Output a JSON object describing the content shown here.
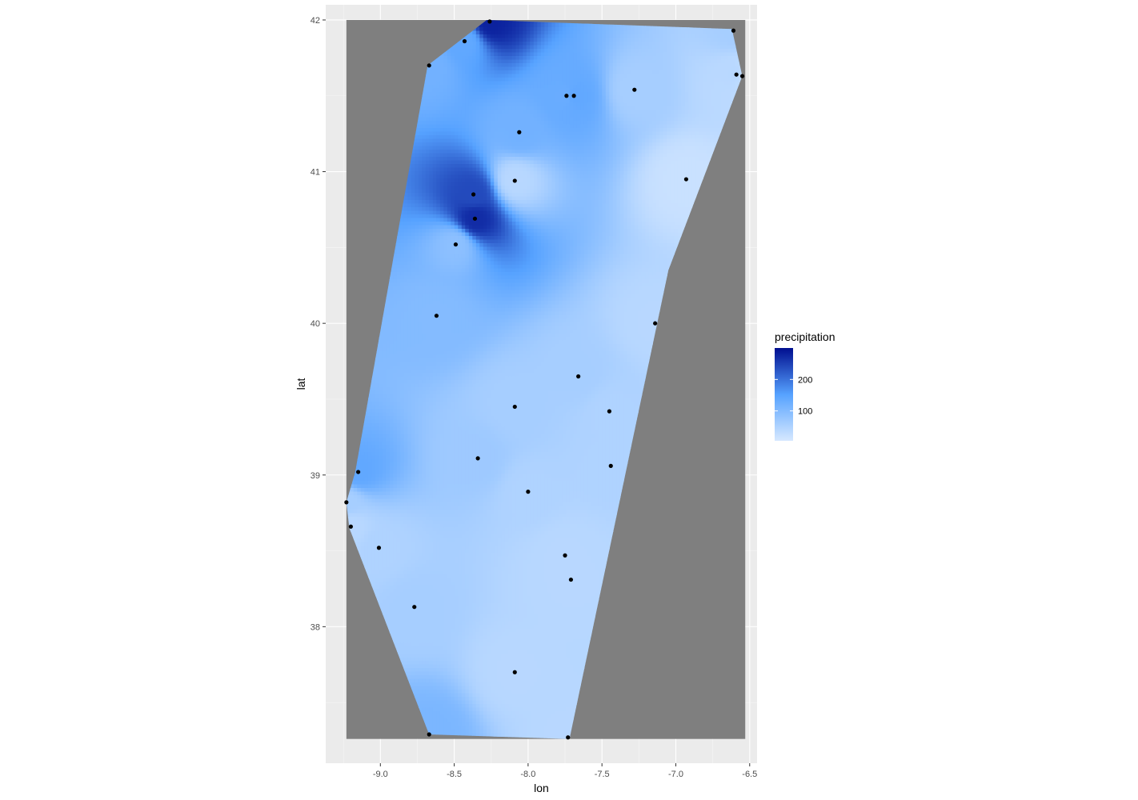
{
  "chart_data": {
    "type": "heatmap",
    "title": "",
    "xlabel": "lon",
    "ylabel": "lat",
    "xlim": [
      -9.37,
      -6.45
    ],
    "ylim": [
      37.1,
      42.1
    ],
    "x_ticks": [
      -9.0,
      -8.5,
      -8.0,
      -7.5,
      -7.0,
      -6.5
    ],
    "x_tick_labels": [
      "-9.0",
      "-8.5",
      "-8.0",
      "-7.5",
      "-7.0",
      "-6.5"
    ],
    "y_ticks": [
      38,
      39,
      40,
      41,
      42
    ],
    "y_tick_labels": [
      "38",
      "39",
      "40",
      "41",
      "42"
    ],
    "grid": true,
    "panel_background": "#ebebeb",
    "raster_extent": {
      "lon": [
        -9.23,
        -6.53
      ],
      "lat": [
        37.26,
        42.0
      ]
    },
    "raster_background": "#7f7f7f",
    "interpolated_area": [
      [
        -8.28,
        42.0
      ],
      [
        -6.62,
        41.94
      ],
      [
        -6.55,
        41.63
      ],
      [
        -7.05,
        40.35
      ],
      [
        -7.72,
        37.26
      ],
      [
        -8.67,
        37.29
      ],
      [
        -9.21,
        38.65
      ],
      [
        -9.23,
        38.82
      ],
      [
        -9.17,
        39.02
      ],
      [
        -8.68,
        41.7
      ]
    ],
    "stations": [
      {
        "lon": -8.26,
        "lat": 41.99,
        "precipitation": 280
      },
      {
        "lon": -8.43,
        "lat": 41.86,
        "precipitation": 140
      },
      {
        "lon": -6.61,
        "lat": 41.93,
        "precipitation": 60
      },
      {
        "lon": -8.67,
        "lat": 41.7,
        "precipitation": 120
      },
      {
        "lon": -7.74,
        "lat": 41.5,
        "precipitation": 130
      },
      {
        "lon": -7.69,
        "lat": 41.5,
        "precipitation": 140
      },
      {
        "lon": -7.28,
        "lat": 41.54,
        "precipitation": 60
      },
      {
        "lon": -6.59,
        "lat": 41.64,
        "precipitation": 40
      },
      {
        "lon": -6.55,
        "lat": 41.63,
        "precipitation": 30
      },
      {
        "lon": -8.06,
        "lat": 41.26,
        "precipitation": 120
      },
      {
        "lon": -8.09,
        "lat": 40.94,
        "precipitation": 40
      },
      {
        "lon": -6.93,
        "lat": 40.95,
        "precipitation": 20
      },
      {
        "lon": -8.37,
        "lat": 40.85,
        "precipitation": 240
      },
      {
        "lon": -8.36,
        "lat": 40.69,
        "precipitation": 270
      },
      {
        "lon": -8.49,
        "lat": 40.52,
        "precipitation": 90
      },
      {
        "lon": -8.62,
        "lat": 40.05,
        "precipitation": 100
      },
      {
        "lon": -7.14,
        "lat": 40.0,
        "precipitation": 40
      },
      {
        "lon": -7.66,
        "lat": 39.65,
        "precipitation": 60
      },
      {
        "lon": -8.09,
        "lat": 39.45,
        "precipitation": 60
      },
      {
        "lon": -7.45,
        "lat": 39.42,
        "precipitation": 50
      },
      {
        "lon": -8.34,
        "lat": 39.11,
        "precipitation": 70
      },
      {
        "lon": -7.44,
        "lat": 39.06,
        "precipitation": 50
      },
      {
        "lon": -9.15,
        "lat": 39.02,
        "precipitation": 140
      },
      {
        "lon": -8.0,
        "lat": 38.89,
        "precipitation": 50
      },
      {
        "lon": -9.23,
        "lat": 38.82,
        "precipitation": 60
      },
      {
        "lon": -9.2,
        "lat": 38.66,
        "precipitation": 40
      },
      {
        "lon": -9.01,
        "lat": 38.52,
        "precipitation": 50
      },
      {
        "lon": -7.75,
        "lat": 38.47,
        "precipitation": 40
      },
      {
        "lon": -7.71,
        "lat": 38.31,
        "precipitation": 40
      },
      {
        "lon": -8.77,
        "lat": 38.13,
        "precipitation": 60
      },
      {
        "lon": -8.09,
        "lat": 37.7,
        "precipitation": 40
      },
      {
        "lon": -8.67,
        "lat": 37.29,
        "precipitation": 110
      },
      {
        "lon": -7.73,
        "lat": 37.27,
        "precipitation": 40
      }
    ],
    "legend": {
      "title": "precipitation",
      "placement": "right",
      "breaks": [
        100,
        200
      ],
      "break_labels": [
        "100",
        "200"
      ],
      "limits": [
        5,
        300
      ],
      "colors": [
        "#d6e8ff",
        "#56a2ff",
        "#000e8f"
      ]
    }
  }
}
